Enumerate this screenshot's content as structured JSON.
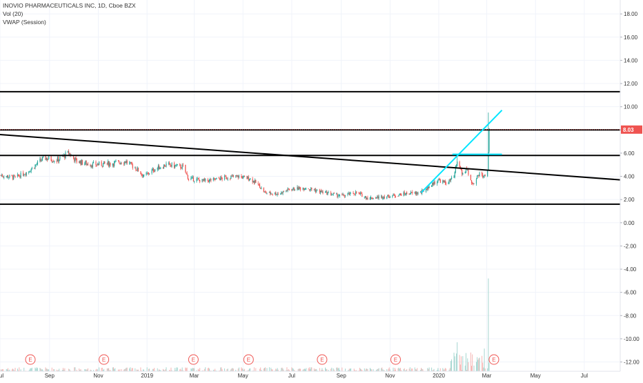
{
  "legend": {
    "title": "INOVIO PHARMACEUTICALS INC, 1D, Cboe BZX",
    "volume": "Vol (20)",
    "vwap": "VWAP (Session)"
  },
  "price_badge": "8.03",
  "colors": {
    "up": "#26a69a",
    "down": "#ef5350",
    "trendline": "#000000",
    "cyan": "#00e5ff",
    "price_line": "#ef5350",
    "earnings": "#ef5350"
  },
  "chart_data": {
    "type": "candlestick",
    "y_axis": {
      "range": [
        -12.8,
        19.2
      ],
      "ticks": [
        18,
        16,
        14,
        12,
        10,
        8,
        6,
        4,
        2,
        0,
        -2,
        -4,
        -6,
        -8,
        -10,
        -12
      ],
      "tick_labels": [
        "18.00",
        "16.00",
        "14.00",
        "12.00",
        "10.00",
        "8.00",
        "6.00",
        "4.00",
        "2.00",
        "0.00",
        "-2.00",
        "-4.00",
        "-6.00",
        "-8.00",
        "-10.00",
        "-12.00"
      ]
    },
    "x_axis": {
      "labels": [
        "Jul",
        "Sep",
        "Nov",
        "2019",
        "Mar",
        "May",
        "Jul",
        "Sep",
        "Nov",
        "2020",
        "Mar",
        "May",
        "Jul"
      ],
      "range": [
        "2018-07-01",
        "2020-08-15"
      ]
    },
    "price_anchors": [
      [
        "2018-07-01",
        4.1
      ],
      [
        "2018-07-20",
        3.9
      ],
      [
        "2018-08-05",
        4.4
      ],
      [
        "2018-08-25",
        5.6
      ],
      [
        "2018-09-10",
        5.4
      ],
      [
        "2018-09-25",
        6.0
      ],
      [
        "2018-10-05",
        5.3
      ],
      [
        "2018-10-25",
        5.0
      ],
      [
        "2018-11-15",
        5.1
      ],
      [
        "2018-12-05",
        5.3
      ],
      [
        "2018-12-20",
        4.6
      ],
      [
        "2018-12-28",
        4.0
      ],
      [
        "2019-01-10",
        4.6
      ],
      [
        "2019-01-25",
        5.0
      ],
      [
        "2019-02-15",
        4.8
      ],
      [
        "2019-02-22",
        3.8
      ],
      [
        "2019-03-15",
        3.6
      ],
      [
        "2019-04-10",
        3.9
      ],
      [
        "2019-04-25",
        4.0
      ],
      [
        "2019-05-10",
        3.8
      ],
      [
        "2019-05-20",
        3.3
      ],
      [
        "2019-05-28",
        2.6
      ],
      [
        "2019-06-15",
        2.5
      ],
      [
        "2019-06-28",
        2.9
      ],
      [
        "2019-07-20",
        3.0
      ],
      [
        "2019-08-10",
        2.6
      ],
      [
        "2019-09-01",
        2.3
      ],
      [
        "2019-09-20",
        2.6
      ],
      [
        "2019-10-05",
        2.1
      ],
      [
        "2019-11-01",
        2.3
      ],
      [
        "2019-11-20",
        2.5
      ],
      [
        "2019-12-10",
        2.6
      ],
      [
        "2019-12-31",
        3.7
      ],
      [
        "2020-01-10",
        3.4
      ],
      [
        "2020-01-20",
        3.9
      ],
      [
        "2020-01-24",
        5.4
      ],
      [
        "2020-01-30",
        4.2
      ],
      [
        "2020-02-05",
        4.6
      ],
      [
        "2020-02-12",
        3.3
      ],
      [
        "2020-02-22",
        4.3
      ],
      [
        "2020-02-26",
        3.9
      ],
      [
        "2020-03-02",
        4.6
      ],
      [
        "2020-03-04",
        8.0
      ]
    ],
    "spikes": [
      {
        "date": "2020-01-24",
        "high": 5.8
      },
      {
        "date": "2020-03-03",
        "high": 9.5
      }
    ],
    "earnings_dates": [
      "2018-08-08",
      "2018-11-08",
      "2019-02-28",
      "2019-05-08",
      "2019-08-08",
      "2019-11-08",
      "2020-03-10"
    ],
    "earnings_label": "E",
    "horizontal_lines": [
      11.3,
      8.0,
      5.8,
      1.6
    ],
    "trendlines": [
      {
        "from": [
          "2018-07-01",
          7.6
        ],
        "to": [
          "2020-08-15",
          3.7
        ]
      }
    ],
    "cyan_lines": [
      {
        "from": [
          "2019-12-10",
          2.6
        ],
        "to": [
          "2020-03-20",
          9.7
        ]
      },
      {
        "from": [
          "2020-01-18",
          5.9
        ],
        "to": [
          "2020-03-20",
          5.9
        ]
      }
    ],
    "volume": {
      "baseline": -12.8,
      "typical_max": -12.1,
      "peaks": [
        {
          "date": "2020-01-24",
          "top": -10.3
        },
        {
          "date": "2020-02-27",
          "top": -10.6
        },
        {
          "date": "2020-03-03",
          "top": -4.8
        }
      ]
    },
    "last_price": 8.03
  }
}
